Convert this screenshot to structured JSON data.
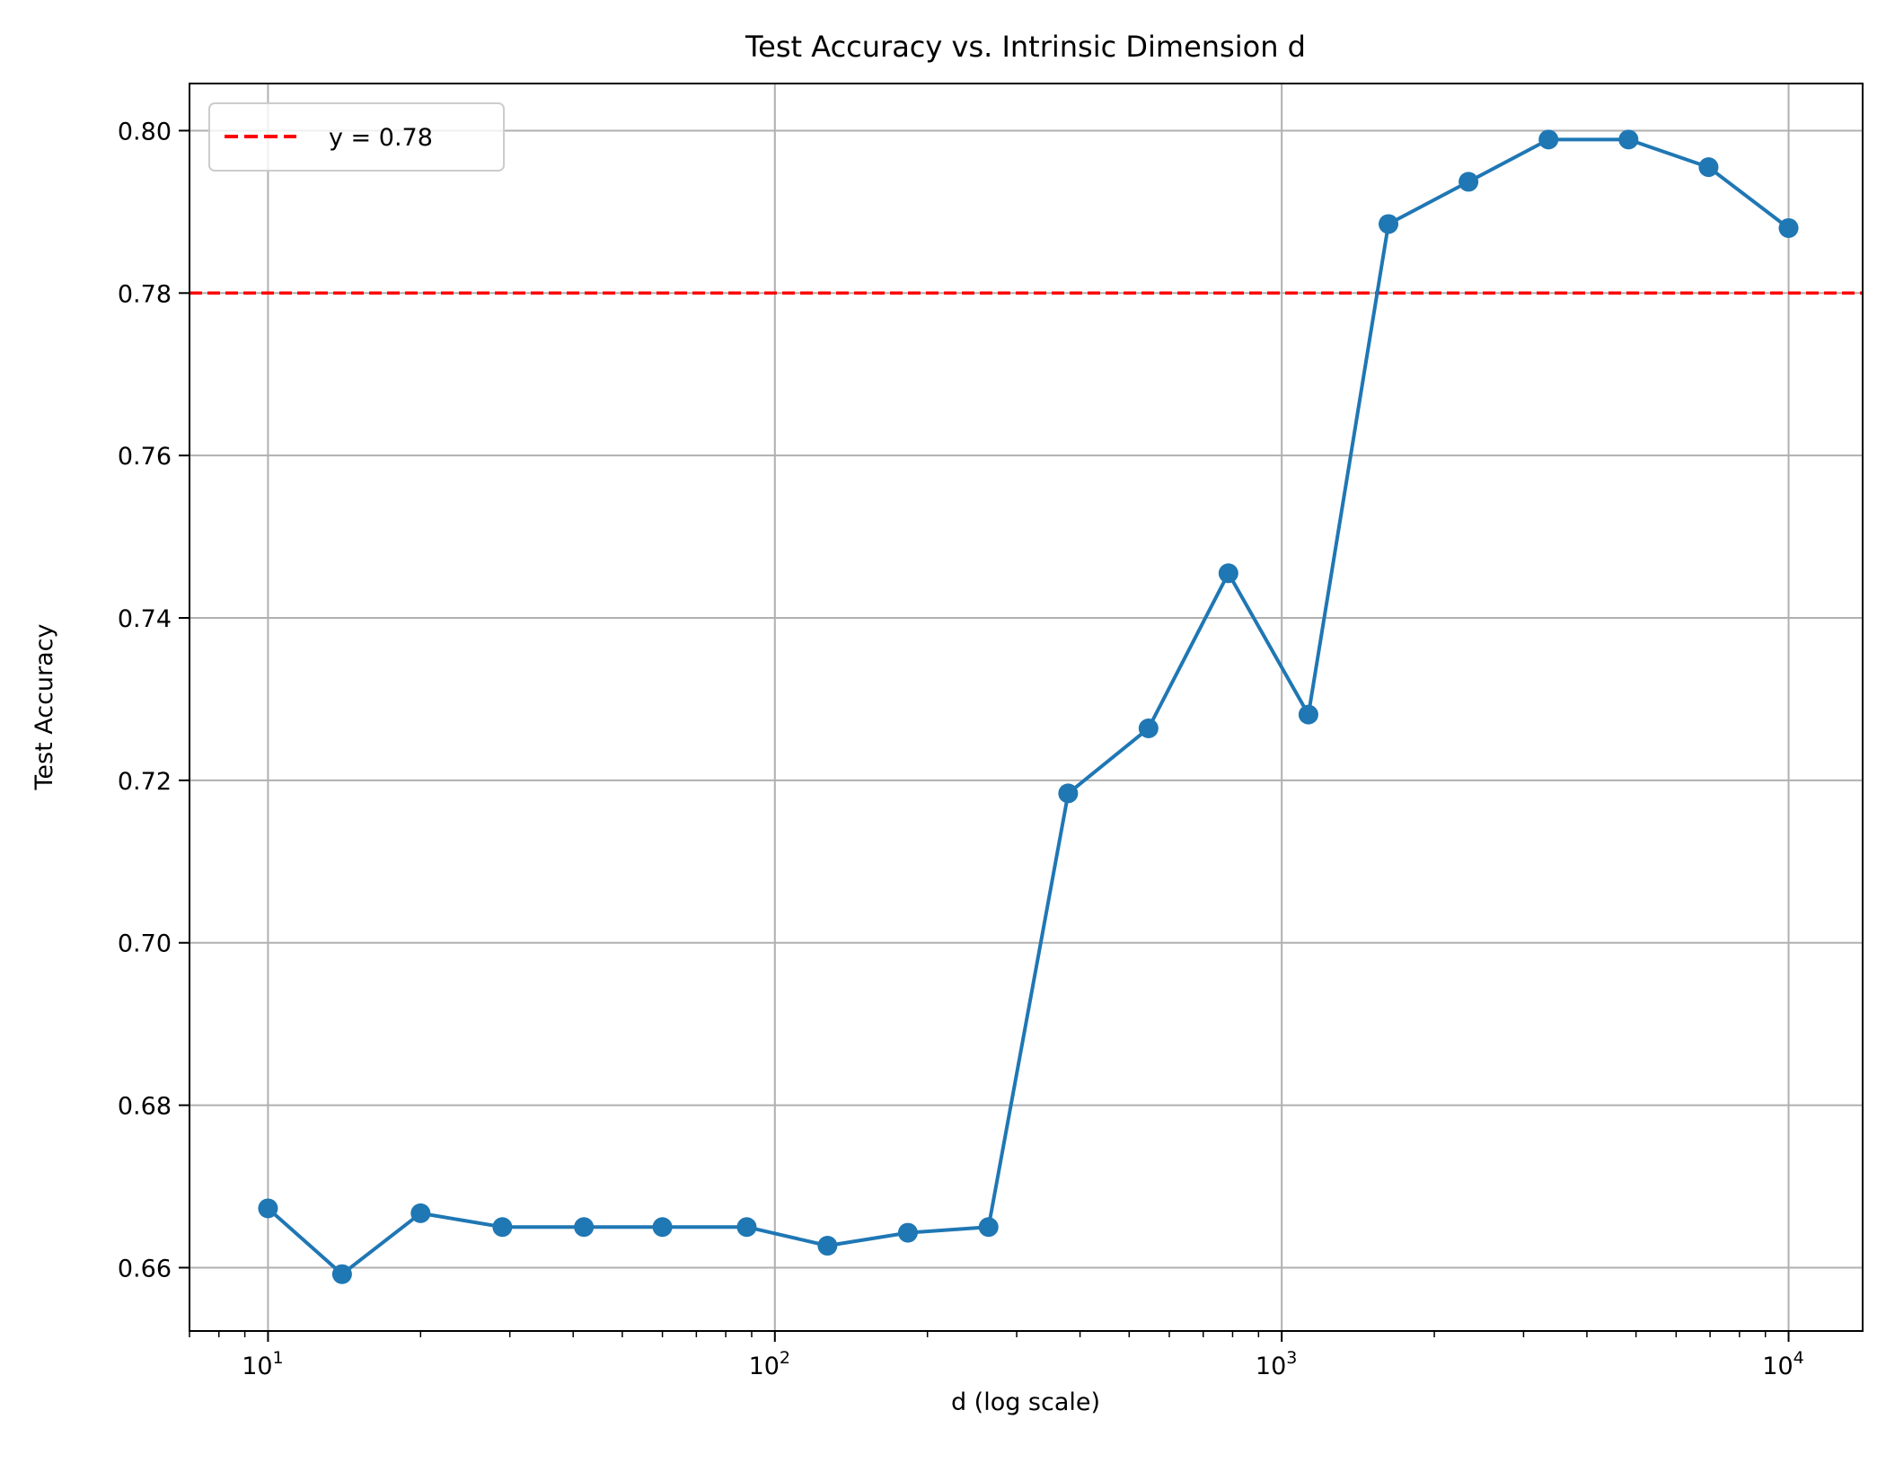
{
  "chart_data": {
    "type": "line",
    "title": "Test Accuracy vs. Intrinsic Dimension d",
    "xlabel": "d (log scale)",
    "ylabel": "Test Accuracy",
    "x_scale": "log",
    "xlim": [
      7,
      14000
    ],
    "ylim": [
      0.6522,
      0.8058
    ],
    "grid": true,
    "legend_position": "upper-left",
    "x_ticks": [
      {
        "value": 10,
        "base": "10",
        "exp": "1"
      },
      {
        "value": 100,
        "base": "10",
        "exp": "2"
      },
      {
        "value": 1000,
        "base": "10",
        "exp": "3"
      },
      {
        "value": 10000,
        "base": "10",
        "exp": "4"
      }
    ],
    "y_ticks": [
      {
        "value": 0.66,
        "label": "0.66"
      },
      {
        "value": 0.68,
        "label": "0.68"
      },
      {
        "value": 0.7,
        "label": "0.70"
      },
      {
        "value": 0.72,
        "label": "0.72"
      },
      {
        "value": 0.74,
        "label": "0.74"
      },
      {
        "value": 0.76,
        "label": "0.76"
      },
      {
        "value": 0.78,
        "label": "0.78"
      },
      {
        "value": 0.8,
        "label": "0.80"
      }
    ],
    "series": [
      {
        "color": "#1f77b4",
        "marker": "circle",
        "x": [
          10,
          14,
          20,
          29,
          42,
          60,
          88,
          127,
          183,
          264,
          379,
          546,
          785,
          1129,
          1624,
          2336,
          3360,
          4833,
          6952,
          10000
        ],
        "y": [
          0.6673,
          0.6592,
          0.6667,
          0.665,
          0.665,
          0.665,
          0.665,
          0.6627,
          0.6643,
          0.665,
          0.7184,
          0.7264,
          0.7455,
          0.7281,
          0.7885,
          0.7937,
          0.7989,
          0.7989,
          0.7955,
          0.788
        ]
      }
    ],
    "reference_line": {
      "y": 0.78,
      "label": "y = 0.78",
      "color": "#ff0000",
      "style": "dashed"
    }
  }
}
